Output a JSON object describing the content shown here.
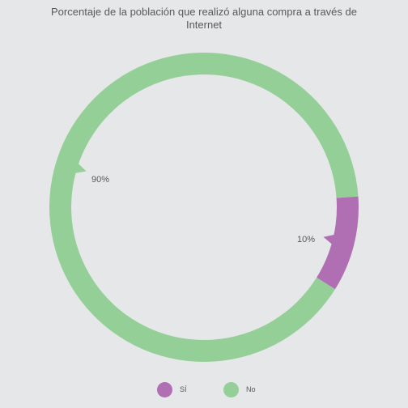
{
  "chart_data": {
    "type": "pie",
    "style": "donut",
    "title": "Porcentaje de la población que realizó alguna compra a través de Internet",
    "categories": [
      "Sí",
      "No"
    ],
    "values": [
      10,
      90
    ],
    "data_labels": [
      "10%",
      "90%"
    ],
    "legend_labels": [
      "SÍ",
      "No"
    ],
    "colors": [
      "#b06fb3",
      "#94cf97"
    ],
    "legend_position": "bottom"
  }
}
